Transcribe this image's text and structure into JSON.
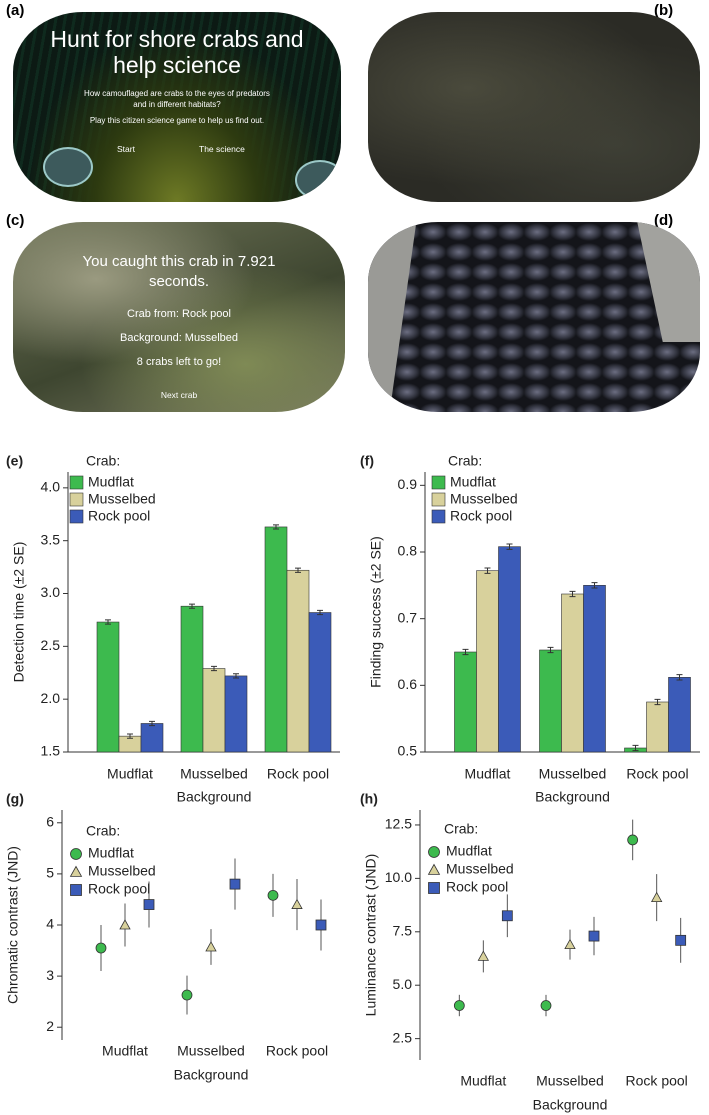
{
  "screens": {
    "a": {
      "label": "(a)",
      "title": "Hunt for shore crabs and help science",
      "question": "How camouflaged are crabs to the eyes of predators and in different habitats?",
      "prompt": "Play this citizen science game to help us find out.",
      "buttons": [
        "Start",
        "The science"
      ]
    },
    "b": {
      "label": "(b)"
    },
    "c": {
      "label": "(c)",
      "result": "You caught this crab in 7.921 seconds.",
      "crab_from": "Crab from: Rock  pool",
      "background": "Background: Musselbed",
      "remaining": "8 crabs left to go!",
      "button": "Next crab"
    },
    "d": {
      "label": "(d)"
    }
  },
  "chart_data": [
    {
      "type": "bar",
      "panel_label": "(e)",
      "ylabel": "Detection time (±2 SE)",
      "xlabel": "Background",
      "legend_title": "Crab:",
      "categories": [
        "Mudflat",
        "Musselbed",
        "Rock  pool"
      ],
      "series": [
        {
          "name": "Mudflat",
          "color": "#3dba4e",
          "values": [
            2.73,
            2.88,
            3.63
          ],
          "errors": [
            0.02,
            0.02,
            0.02
          ]
        },
        {
          "name": "Musselbed",
          "color": "#d8d19c",
          "values": [
            1.65,
            2.29,
            3.22
          ],
          "errors": [
            0.02,
            0.02,
            0.02
          ]
        },
        {
          "name": "Rock pool",
          "color": "#3b5bb8",
          "values": [
            1.77,
            2.22,
            2.82
          ],
          "errors": [
            0.02,
            0.02,
            0.02
          ]
        }
      ],
      "ylim": [
        1.5,
        4.15
      ],
      "yticks": [
        1.5,
        {
          "value": 2,
          "label": "2.0"
        },
        2.5,
        {
          "value": 3,
          "label": "3.0"
        },
        3.5,
        {
          "value": 4,
          "label": "4.0"
        }
      ]
    },
    {
      "type": "bar",
      "panel_label": "(f)",
      "ylabel": "Finding success (±2 SE)",
      "xlabel": "Background",
      "legend_title": "Crab:",
      "categories": [
        "Mudflat",
        "Musselbed",
        "Rock  pool"
      ],
      "series": [
        {
          "name": "Mudflat",
          "color": "#3dba4e",
          "values": [
            0.65,
            0.653,
            0.506
          ],
          "errors": [
            0.004,
            0.004,
            0.004
          ]
        },
        {
          "name": "Musselbed",
          "color": "#d8d19c",
          "values": [
            0.772,
            0.737,
            0.575
          ],
          "errors": [
            0.004,
            0.004,
            0.004
          ]
        },
        {
          "name": "Rock pool",
          "color": "#3b5bb8",
          "values": [
            0.808,
            0.75,
            0.612
          ],
          "errors": [
            0.004,
            0.004,
            0.004
          ]
        }
      ],
      "ylim": [
        0.5,
        0.92
      ],
      "yticks": [
        0.5,
        0.6,
        0.7,
        0.8,
        0.9
      ]
    },
    {
      "type": "point",
      "panel_label": "(g)",
      "ylabel": "Chromatic contrast (JND)",
      "xlabel": "Background",
      "legend_title": "Crab:",
      "categories": [
        "Mudflat",
        "Musselbed",
        "Rock pool"
      ],
      "series": [
        {
          "name": "Mudflat",
          "color": "#3dba4e",
          "marker": "circle",
          "values": [
            3.55,
            2.63,
            4.58
          ],
          "errors": [
            0.45,
            0.38,
            0.42
          ]
        },
        {
          "name": "Musselbed",
          "color": "#d8d19c",
          "marker": "triangle",
          "values": [
            4.0,
            3.57,
            4.4
          ],
          "errors": [
            0.42,
            0.35,
            0.5
          ]
        },
        {
          "name": "Rock pool",
          "color": "#3b5bb8",
          "marker": "square",
          "values": [
            4.4,
            4.8,
            4.0
          ],
          "errors": [
            0.45,
            0.5,
            0.5
          ]
        }
      ],
      "ylim": [
        1.75,
        6.25
      ],
      "yticks": [
        2,
        3,
        4,
        5,
        6
      ]
    },
    {
      "type": "point",
      "panel_label": "(h)",
      "ylabel": "Luminance contrast (JND)",
      "xlabel": "Background",
      "legend_title": "Crab:",
      "categories": [
        "Mudflat",
        "Musselbed",
        "Rock pool"
      ],
      "series": [
        {
          "name": "Mudflat",
          "color": "#3dba4e",
          "marker": "circle",
          "values": [
            4.05,
            4.05,
            11.8
          ],
          "errors": [
            0.5,
            0.5,
            0.95
          ]
        },
        {
          "name": "Musselbed",
          "color": "#d8d19c",
          "marker": "triangle",
          "values": [
            6.35,
            6.9,
            9.1
          ],
          "errors": [
            0.75,
            0.7,
            1.1
          ]
        },
        {
          "name": "Rock pool",
          "color": "#3b5bb8",
          "marker": "square",
          "values": [
            8.25,
            7.3,
            7.1
          ],
          "errors": [
            1.0,
            0.9,
            1.05
          ]
        }
      ],
      "ylim": [
        1.5,
        13.2
      ],
      "yticks": [
        2.5,
        {
          "value": 5,
          "label": "5.0"
        },
        7.5,
        {
          "value": 10,
          "label": "10.0"
        },
        12.5
      ]
    }
  ]
}
